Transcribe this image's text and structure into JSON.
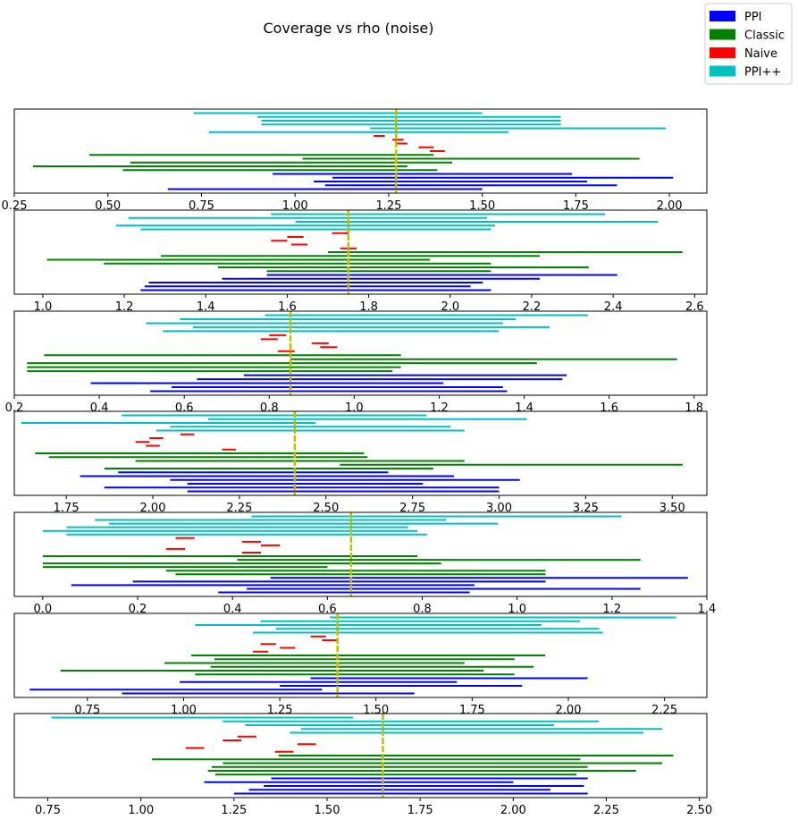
{
  "chart_data": {
    "title": "Coverage vs rho (noise)",
    "type": "interval",
    "legend": {
      "placement": "top-right",
      "entries": [
        {
          "name": "PPI",
          "color": "#0000ff"
        },
        {
          "name": "Classic",
          "color": "#008000"
        },
        {
          "name": "Naive",
          "color": "#ff0000"
        },
        {
          "name": "PPI++",
          "color": "#00bfbf"
        }
      ]
    },
    "truth_color": "#bfbf00",
    "panels": [
      {
        "xlim": [
          0.25,
          2.1
        ],
        "truth": 1.27,
        "ticks": [
          "0.25",
          "0.50",
          "0.75",
          "1.00",
          "1.25",
          "1.50",
          "1.75",
          "2.00"
        ],
        "tick_values": [
          0.25,
          0.5,
          0.75,
          1.0,
          1.25,
          1.5,
          1.75,
          2.0
        ],
        "intervals": {
          "PPI++": [
            [
              0.73,
              1.5
            ],
            [
              0.9,
              1.71
            ],
            [
              0.91,
              1.71
            ],
            [
              0.91,
              1.71
            ],
            [
              1.2,
              1.99
            ],
            [
              0.77,
              1.57
            ]
          ],
          "Naive": [
            [
              1.21,
              1.24
            ],
            [
              1.26,
              1.29
            ],
            [
              1.27,
              1.3
            ],
            [
              1.33,
              1.37
            ],
            [
              1.36,
              1.4
            ]
          ],
          "Classic": [
            [
              0.45,
              1.37
            ],
            [
              1.02,
              1.92
            ],
            [
              0.56,
              1.42
            ],
            [
              0.3,
              1.3
            ],
            [
              0.54,
              1.38
            ]
          ],
          "PPI": [
            [
              0.94,
              1.74
            ],
            [
              1.1,
              2.01
            ],
            [
              1.05,
              1.78
            ],
            [
              1.08,
              1.86
            ],
            [
              0.66,
              1.5
            ]
          ]
        }
      },
      {
        "xlim": [
          0.93,
          2.63
        ],
        "truth": 1.75,
        "ticks": [
          "1.0",
          "1.2",
          "1.4",
          "1.6",
          "1.8",
          "2.0",
          "2.2",
          "2.4",
          "2.6"
        ],
        "tick_values": [
          1.0,
          1.2,
          1.4,
          1.6,
          1.8,
          2.0,
          2.2,
          2.4,
          2.6
        ],
        "intervals": {
          "PPI++": [
            [
              1.56,
              2.38
            ],
            [
              1.21,
              2.09
            ],
            [
              1.62,
              2.51
            ],
            [
              1.18,
              2.11
            ],
            [
              1.24,
              2.1
            ]
          ],
          "Naive": [
            [
              1.71,
              1.75
            ],
            [
              1.6,
              1.64
            ],
            [
              1.56,
              1.6
            ],
            [
              1.61,
              1.65
            ],
            [
              1.73,
              1.77
            ]
          ],
          "Classic": [
            [
              1.7,
              2.57
            ],
            [
              1.29,
              2.22
            ],
            [
              1.01,
              1.95
            ],
            [
              1.15,
              2.1
            ],
            [
              1.43,
              2.34
            ],
            [
              1.55,
              2.1
            ]
          ],
          "PPI": [
            [
              1.55,
              2.41
            ],
            [
              1.44,
              2.22
            ],
            [
              1.26,
              2.08
            ],
            [
              1.25,
              2.05
            ],
            [
              1.24,
              2.1
            ]
          ]
        }
      },
      {
        "xlim": [
          0.2,
          1.83
        ],
        "truth": 0.85,
        "ticks": [
          "0.2",
          "0.4",
          "0.6",
          "0.8",
          "1.0",
          "1.2",
          "1.4",
          "1.6",
          "1.8"
        ],
        "tick_values": [
          0.2,
          0.4,
          0.6,
          0.8,
          1.0,
          1.2,
          1.4,
          1.6,
          1.8
        ],
        "intervals": {
          "PPI++": [
            [
              0.79,
              1.55
            ],
            [
              0.59,
              1.38
            ],
            [
              0.51,
              1.35
            ],
            [
              0.62,
              1.46
            ],
            [
              0.55,
              1.34
            ]
          ],
          "Naive": [
            [
              0.8,
              0.84
            ],
            [
              0.78,
              0.82
            ],
            [
              0.9,
              0.94
            ],
            [
              0.92,
              0.96
            ],
            [
              0.82,
              0.86
            ]
          ],
          "Classic": [
            [
              0.27,
              1.11
            ],
            [
              0.85,
              1.76
            ],
            [
              0.23,
              1.43
            ],
            [
              0.23,
              1.11
            ],
            [
              0.23,
              1.09
            ]
          ],
          "PPI": [
            [
              0.74,
              1.5
            ],
            [
              0.63,
              1.49
            ],
            [
              0.38,
              1.21
            ],
            [
              0.57,
              1.35
            ],
            [
              0.52,
              1.36
            ]
          ]
        }
      },
      {
        "xlim": [
          1.6,
          3.6
        ],
        "truth": 2.41,
        "ticks": [
          "1.75",
          "2.00",
          "2.25",
          "2.50",
          "2.75",
          "3.00",
          "3.25",
          "3.50"
        ],
        "tick_values": [
          1.75,
          2.0,
          2.25,
          2.5,
          2.75,
          3.0,
          3.25,
          3.5
        ],
        "intervals": {
          "PPI++": [
            [
              1.91,
              2.79
            ],
            [
              2.16,
              3.08
            ],
            [
              1.62,
              2.47
            ],
            [
              2.05,
              2.86
            ],
            [
              2.01,
              2.9
            ]
          ],
          "Naive": [
            [
              2.08,
              2.12
            ],
            [
              1.99,
              2.03
            ],
            [
              1.95,
              1.99
            ],
            [
              1.98,
              2.02
            ],
            [
              2.2,
              2.24
            ]
          ],
          "Classic": [
            [
              1.66,
              2.61
            ],
            [
              1.7,
              2.62
            ],
            [
              1.95,
              2.9
            ],
            [
              2.54,
              3.53
            ],
            [
              1.86,
              2.81
            ]
          ],
          "PPI": [
            [
              1.9,
              2.68
            ],
            [
              1.79,
              2.87
            ],
            [
              2.05,
              3.06
            ],
            [
              2.1,
              2.78
            ],
            [
              1.86,
              3.0
            ],
            [
              2.1,
              3.0
            ]
          ]
        }
      },
      {
        "xlim": [
          -0.06,
          1.4
        ],
        "truth": 0.65,
        "ticks": [
          "0.0",
          "0.2",
          "0.4",
          "0.6",
          "0.8",
          "1.0",
          "1.2",
          "1.4"
        ],
        "tick_values": [
          0.0,
          0.2,
          0.4,
          0.6,
          0.8,
          1.0,
          1.2,
          1.4
        ],
        "intervals": {
          "PPI++": [
            [
              0.44,
              1.22
            ],
            [
              0.11,
              0.85
            ],
            [
              0.14,
              0.96
            ],
            [
              0.05,
              0.77
            ],
            [
              0.0,
              0.79
            ],
            [
              0.05,
              0.81
            ]
          ],
          "Naive": [
            [
              0.28,
              0.32
            ],
            [
              0.42,
              0.46
            ],
            [
              0.46,
              0.5
            ],
            [
              0.26,
              0.3
            ],
            [
              0.42,
              0.46
            ]
          ],
          "Classic": [
            [
              0.0,
              0.79
            ],
            [
              0.41,
              1.26
            ],
            [
              0.0,
              0.84
            ],
            [
              0.0,
              0.6
            ],
            [
              0.26,
              1.06
            ],
            [
              0.28,
              1.06
            ]
          ],
          "PPI": [
            [
              0.48,
              1.36
            ],
            [
              0.19,
              1.06
            ],
            [
              0.06,
              0.91
            ],
            [
              0.43,
              1.26
            ],
            [
              0.37,
              0.9
            ]
          ]
        }
      },
      {
        "xlim": [
          0.56,
          2.36
        ],
        "truth": 1.4,
        "ticks": [
          "0.75",
          "1.00",
          "1.25",
          "1.50",
          "1.75",
          "2.00",
          "2.25"
        ],
        "tick_values": [
          0.75,
          1.0,
          1.25,
          1.5,
          1.75,
          2.0,
          2.25
        ],
        "intervals": {
          "PPI++": [
            [
              1.38,
              2.28
            ],
            [
              1.2,
              2.03
            ],
            [
              1.03,
              1.93
            ],
            [
              1.24,
              2.08
            ],
            [
              1.18,
              2.09
            ]
          ],
          "Naive": [
            [
              1.33,
              1.37
            ],
            [
              1.36,
              1.4
            ],
            [
              1.2,
              1.24
            ],
            [
              1.25,
              1.29
            ],
            [
              1.18,
              1.22
            ]
          ],
          "Classic": [
            [
              1.02,
              1.94
            ],
            [
              1.08,
              1.86
            ],
            [
              0.95,
              1.73
            ],
            [
              1.07,
              1.91
            ],
            [
              0.68,
              1.78
            ],
            [
              1.03,
              1.86
            ]
          ],
          "PPI": [
            [
              1.33,
              2.05
            ],
            [
              0.99,
              1.71
            ],
            [
              1.25,
              1.88
            ],
            [
              0.6,
              1.36
            ],
            [
              0.84,
              1.6
            ]
          ]
        }
      },
      {
        "xlim": [
          0.66,
          2.52
        ],
        "truth": 1.65,
        "ticks": [
          "0.75",
          "1.00",
          "1.25",
          "1.50",
          "1.75",
          "2.00",
          "2.25",
          "2.50"
        ],
        "tick_values": [
          0.75,
          1.0,
          1.25,
          1.5,
          1.75,
          2.0,
          2.25,
          2.5
        ],
        "intervals": {
          "PPI++": [
            [
              0.76,
              1.57
            ],
            [
              1.22,
              2.23
            ],
            [
              1.28,
              2.11
            ],
            [
              1.43,
              2.4
            ],
            [
              1.4,
              2.35
            ]
          ],
          "Naive": [
            [
              1.26,
              1.31
            ],
            [
              1.22,
              1.27
            ],
            [
              1.42,
              1.47
            ],
            [
              1.12,
              1.17
            ],
            [
              1.36,
              1.41
            ]
          ],
          "Classic": [
            [
              1.37,
              2.43
            ],
            [
              1.03,
              2.18
            ],
            [
              1.22,
              2.4
            ],
            [
              1.19,
              2.2
            ],
            [
              1.18,
              2.33
            ],
            [
              1.2,
              2.17
            ]
          ],
          "PPI": [
            [
              1.35,
              2.2
            ],
            [
              1.17,
              2.0
            ],
            [
              1.33,
              2.19
            ],
            [
              1.29,
              2.1
            ],
            [
              1.25,
              2.2
            ]
          ]
        }
      }
    ]
  }
}
